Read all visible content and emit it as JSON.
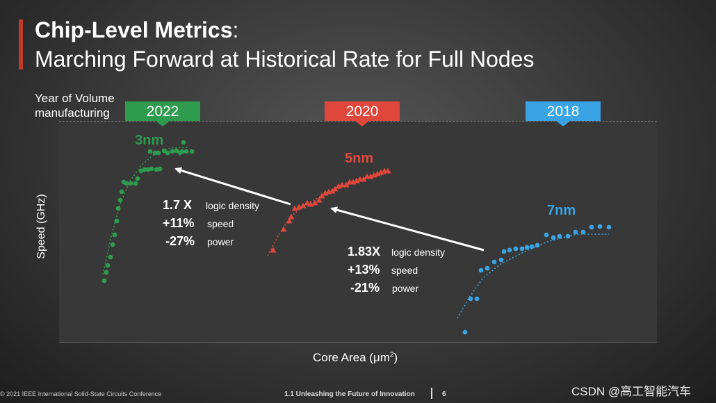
{
  "slide": {
    "title_bold": "Chip-Level Metrics",
    "title_colon": ":",
    "subtitle": "Marching Forward at Historical Rate for Full Nodes",
    "year_label": "Year of Volume manufacturing",
    "footer_left": "© 2021 IEEE International Solid-State Circuits Conference",
    "footer_center": "1.1 Unleashing the Future of Innovation",
    "page_number": "6",
    "watermark": "CSDN @高工智能汽车"
  },
  "colors": {
    "accent": "#c0392b",
    "green": "#2e9b4f",
    "red": "#e0473c",
    "blue": "#3aa3e3"
  },
  "chart_data": {
    "type": "scatter",
    "xlabel": "Core Area (μm",
    "xlabel_sup": "2",
    "ylabel": "Speed (GHz)",
    "grid": false,
    "series": [
      {
        "name": "3nm",
        "year": "2022",
        "color": "#2e9b4f",
        "marker": "circle",
        "points": [
          [
            150,
            404
          ],
          [
            153,
            392
          ],
          [
            155,
            382
          ],
          [
            159,
            370
          ],
          [
            162,
            352
          ],
          [
            165,
            338
          ],
          [
            168,
            318
          ],
          [
            170,
            300
          ],
          [
            173,
            288
          ],
          [
            175,
            276
          ],
          [
            178,
            262
          ],
          [
            182,
            264
          ],
          [
            188,
            264
          ],
          [
            195,
            264
          ],
          [
            198,
            257
          ],
          [
            203,
            246
          ],
          [
            208,
            244
          ],
          [
            213,
            244
          ],
          [
            218,
            243
          ],
          [
            225,
            244
          ],
          [
            230,
            243
          ],
          [
            216,
            218
          ],
          [
            223,
            220
          ],
          [
            228,
            220
          ],
          [
            236,
            217
          ],
          [
            241,
            220
          ],
          [
            248,
            218
          ],
          [
            254,
            217
          ],
          [
            259,
            220
          ],
          [
            264,
            205
          ],
          [
            268,
            218
          ],
          [
            276,
            218
          ],
          [
            262,
            218
          ]
        ]
      },
      {
        "name": "5nm",
        "year": "2020",
        "color": "#e0473c",
        "marker": "triangle",
        "points": [
          [
            393,
            360
          ],
          [
            408,
            330
          ],
          [
            416,
            318
          ],
          [
            419,
            312
          ],
          [
            424,
            300
          ],
          [
            430,
            298
          ],
          [
            436,
            296
          ],
          [
            442,
            292
          ],
          [
            447,
            294
          ],
          [
            453,
            292
          ],
          [
            459,
            288
          ],
          [
            463,
            282
          ],
          [
            468,
            278
          ],
          [
            473,
            276
          ],
          [
            478,
            275
          ],
          [
            482,
            272
          ],
          [
            487,
            268
          ],
          [
            492,
            266
          ],
          [
            498,
            266
          ],
          [
            503,
            262
          ],
          [
            508,
            262
          ],
          [
            513,
            260
          ],
          [
            518,
            258
          ],
          [
            523,
            258
          ],
          [
            528,
            254
          ],
          [
            533,
            254
          ],
          [
            538,
            252
          ],
          [
            543,
            250
          ],
          [
            548,
            248
          ],
          [
            553,
            246
          ],
          [
            558,
            246
          ]
        ]
      },
      {
        "name": "7nm",
        "year": "2018",
        "color": "#3aa3e3",
        "marker": "circle",
        "points": [
          [
            669,
            478
          ],
          [
            677,
            430
          ],
          [
            686,
            430
          ],
          [
            692,
            389
          ],
          [
            701,
            386
          ],
          [
            711,
            377
          ],
          [
            721,
            374
          ],
          [
            725,
            362
          ],
          [
            733,
            360
          ],
          [
            742,
            358
          ],
          [
            751,
            358
          ],
          [
            758,
            356
          ],
          [
            765,
            355
          ],
          [
            773,
            353
          ],
          [
            786,
            338
          ],
          [
            796,
            342
          ],
          [
            805,
            340
          ],
          [
            817,
            340
          ],
          [
            828,
            334
          ],
          [
            839,
            334
          ],
          [
            851,
            327
          ],
          [
            863,
            326
          ],
          [
            876,
            327
          ]
        ]
      }
    ],
    "trendlines": [
      {
        "series": "3nm",
        "color": "#2e9b4f",
        "points": [
          [
            148,
            395
          ],
          [
            160,
            340
          ],
          [
            172,
            296
          ],
          [
            186,
            262
          ],
          [
            203,
            238
          ],
          [
            222,
            222
          ],
          [
            245,
            213
          ],
          [
            270,
            212
          ]
        ]
      },
      {
        "series": "5nm",
        "color": "#e0473c",
        "points": [
          [
            385,
            368
          ],
          [
            400,
            340
          ],
          [
            418,
            312
          ],
          [
            440,
            294
          ],
          [
            470,
            278
          ],
          [
            505,
            264
          ],
          [
            540,
            254
          ],
          [
            563,
            248
          ]
        ]
      },
      {
        "series": "7nm",
        "color": "#3aa3e3",
        "points": [
          [
            658,
            458
          ],
          [
            675,
            428
          ],
          [
            695,
            400
          ],
          [
            720,
            380
          ],
          [
            755,
            362
          ],
          [
            790,
            347
          ],
          [
            830,
            337
          ],
          [
            876,
            337
          ]
        ]
      }
    ],
    "transitions": [
      {
        "from": "5nm",
        "to": "3nm",
        "factor": "1.7 X",
        "density_label": "logic density",
        "speed": "+11%",
        "speed_label": "speed",
        "power": "-27%",
        "power_label": "power"
      },
      {
        "from": "7nm",
        "to": "5nm",
        "factor": "1.83X",
        "density_label": "logic density",
        "speed": "+13%",
        "speed_label": "speed",
        "power": "-21%",
        "power_label": "power"
      }
    ]
  }
}
